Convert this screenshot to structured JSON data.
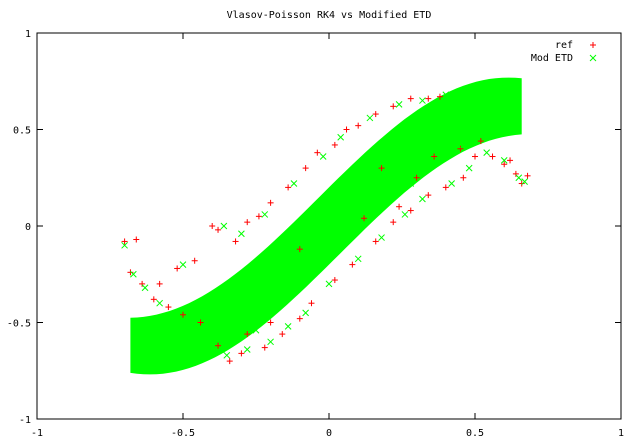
{
  "chart_data": {
    "type": "scatter",
    "title": "Vlasov-Poisson RK4 vs Modified ETD",
    "xlabel": "",
    "ylabel": "",
    "xlim": [
      -1,
      1
    ],
    "ylim": [
      -1,
      1
    ],
    "xticks": [
      -1,
      -0.5,
      0,
      0.5,
      1
    ],
    "yticks": [
      -1,
      -0.5,
      0,
      0.5,
      1
    ],
    "xtick_labels": [
      "-1",
      "-0.5",
      "0",
      "0.5",
      "1"
    ],
    "ytick_labels": [
      "-1",
      "-0.5",
      "0",
      "0.5",
      "1"
    ],
    "grid": false,
    "legend_position": "top-right",
    "colors": {
      "ref": "#ff0000",
      "mod": "#00ff00",
      "axis": "#000000"
    },
    "series": [
      {
        "name": "ref",
        "marker": "+",
        "color": "#ff0000",
        "points": [
          [
            -0.7,
            -0.08
          ],
          [
            -0.66,
            -0.07
          ],
          [
            -0.68,
            -0.24
          ],
          [
            -0.64,
            -0.3
          ],
          [
            -0.6,
            -0.38
          ],
          [
            -0.55,
            -0.42
          ],
          [
            -0.5,
            -0.46
          ],
          [
            -0.44,
            -0.5
          ],
          [
            -0.38,
            -0.62
          ],
          [
            -0.34,
            -0.7
          ],
          [
            -0.3,
            -0.66
          ],
          [
            -0.22,
            -0.63
          ],
          [
            -0.16,
            -0.56
          ],
          [
            -0.1,
            -0.48
          ],
          [
            -0.06,
            -0.4
          ],
          [
            0.02,
            -0.28
          ],
          [
            0.08,
            -0.2
          ],
          [
            0.16,
            -0.08
          ],
          [
            0.22,
            0.02
          ],
          [
            0.28,
            0.08
          ],
          [
            0.34,
            0.16
          ],
          [
            0.4,
            0.2
          ],
          [
            0.46,
            0.25
          ],
          [
            0.5,
            0.36
          ],
          [
            0.56,
            0.36
          ],
          [
            0.6,
            0.32
          ],
          [
            0.64,
            0.27
          ],
          [
            0.66,
            0.22
          ],
          [
            0.68,
            0.26
          ],
          [
            0.62,
            0.34
          ],
          [
            -0.4,
            0.0
          ],
          [
            -0.38,
            -0.02
          ],
          [
            -0.32,
            -0.08
          ],
          [
            -0.28,
            0.02
          ],
          [
            -0.24,
            0.05
          ],
          [
            -0.2,
            0.12
          ],
          [
            -0.14,
            0.2
          ],
          [
            -0.08,
            0.3
          ],
          [
            -0.04,
            0.38
          ],
          [
            0.02,
            0.42
          ],
          [
            0.06,
            0.5
          ],
          [
            0.1,
            0.52
          ],
          [
            0.16,
            0.58
          ],
          [
            0.22,
            0.62
          ],
          [
            0.28,
            0.66
          ],
          [
            0.34,
            0.66
          ],
          [
            0.38,
            0.67
          ],
          [
            0.18,
            0.3
          ],
          [
            0.3,
            0.25
          ],
          [
            0.24,
            0.1
          ],
          [
            -0.52,
            -0.22
          ],
          [
            -0.46,
            -0.18
          ],
          [
            -0.58,
            -0.3
          ],
          [
            0.45,
            0.4
          ],
          [
            0.52,
            0.44
          ],
          [
            -0.28,
            -0.56
          ],
          [
            -0.2,
            -0.5
          ],
          [
            0.12,
            0.04
          ],
          [
            0.36,
            0.36
          ],
          [
            -0.1,
            -0.12
          ]
        ]
      },
      {
        "name": "Mod ETD",
        "marker": "x",
        "color": "#00ff00",
        "points": [
          [
            -0.7,
            -0.1
          ],
          [
            -0.67,
            -0.25
          ],
          [
            -0.63,
            -0.32
          ],
          [
            -0.58,
            -0.4
          ],
          [
            -0.52,
            -0.45
          ],
          [
            -0.46,
            -0.5
          ],
          [
            -0.4,
            -0.6
          ],
          [
            -0.35,
            -0.67
          ],
          [
            -0.28,
            -0.64
          ],
          [
            -0.2,
            -0.6
          ],
          [
            -0.14,
            -0.52
          ],
          [
            -0.08,
            -0.45
          ],
          [
            0.0,
            -0.3
          ],
          [
            0.1,
            -0.17
          ],
          [
            0.18,
            -0.06
          ],
          [
            0.26,
            0.06
          ],
          [
            0.32,
            0.14
          ],
          [
            0.42,
            0.22
          ],
          [
            0.48,
            0.3
          ],
          [
            0.54,
            0.38
          ],
          [
            0.6,
            0.34
          ],
          [
            0.65,
            0.25
          ],
          [
            0.67,
            0.23
          ],
          [
            -0.36,
            0.0
          ],
          [
            -0.3,
            -0.04
          ],
          [
            -0.22,
            0.06
          ],
          [
            -0.12,
            0.22
          ],
          [
            -0.02,
            0.36
          ],
          [
            0.04,
            0.46
          ],
          [
            0.14,
            0.56
          ],
          [
            0.24,
            0.63
          ],
          [
            0.32,
            0.65
          ],
          [
            0.4,
            0.68
          ],
          [
            -0.5,
            -0.2
          ],
          [
            0.44,
            0.42
          ],
          [
            -0.25,
            -0.54
          ],
          [
            0.2,
            0.28
          ],
          [
            0.28,
            0.22
          ]
        ]
      }
    ]
  }
}
